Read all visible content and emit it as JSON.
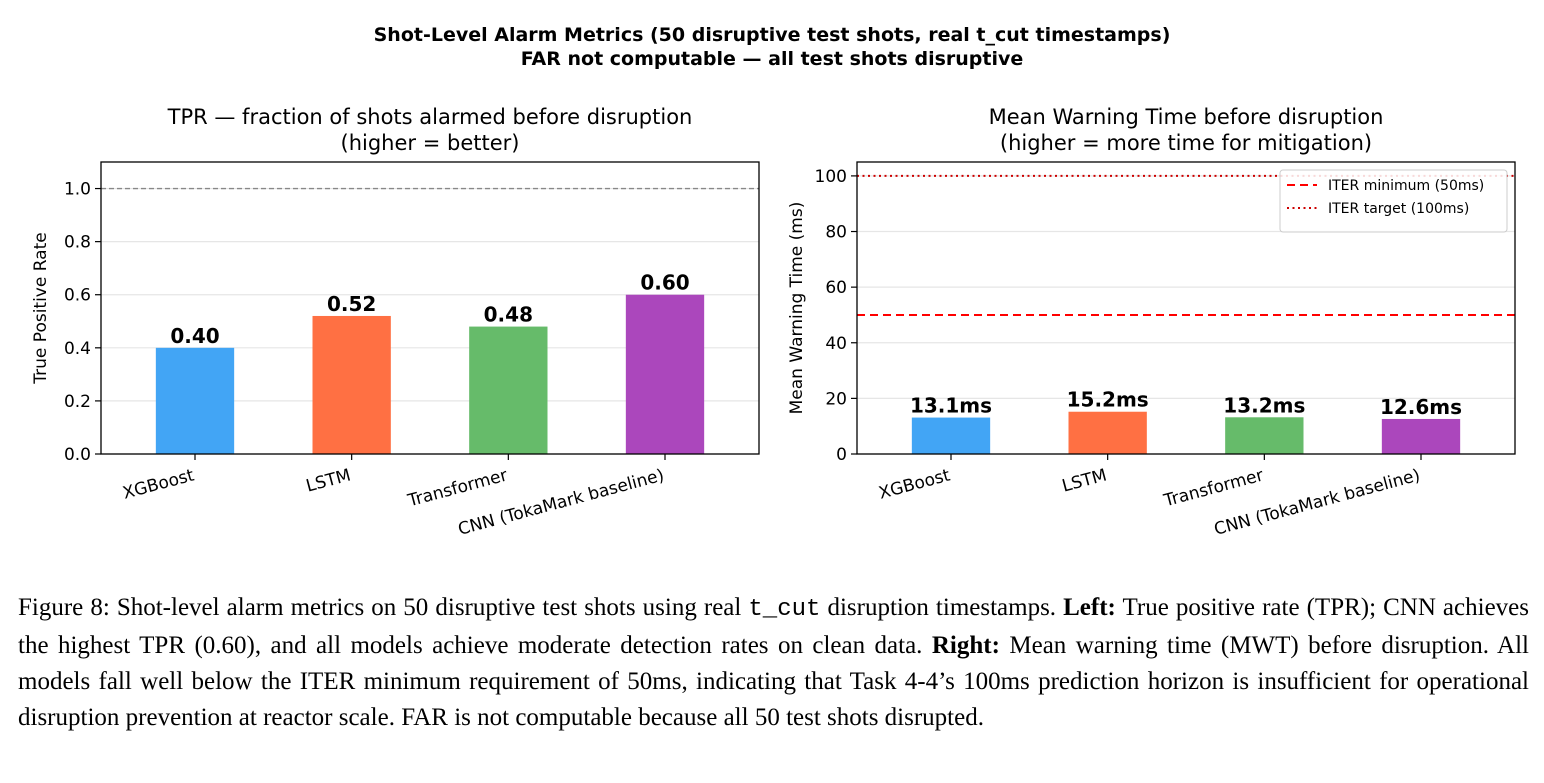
{
  "figure": {
    "suptitle_line1": "Shot-Level Alarm Metrics (50 disruptive test shots, real t_cut timestamps)",
    "suptitle_line2": "FAR not computable — all test shots disruptive"
  },
  "chart_data": [
    {
      "type": "bar",
      "title": "TPR — fraction of shots alarmed before disruption",
      "subtitle": "(higher = better)",
      "xlabel": "",
      "ylabel": "True Positive Rate",
      "categories": [
        "XGBoost",
        "LSTM",
        "Transformer",
        "CNN (TokaMark baseline)"
      ],
      "values": [
        0.4,
        0.52,
        0.48,
        0.6
      ],
      "value_labels": [
        "0.40",
        "0.52",
        "0.48",
        "0.60"
      ],
      "colors": [
        "#42a5f5",
        "#ff7043",
        "#66bb6a",
        "#ab47bc"
      ],
      "ylim": [
        0,
        1.1
      ],
      "yticks": [
        0.0,
        0.2,
        0.4,
        0.6,
        0.8,
        1.0
      ],
      "ytick_labels": [
        "0.0",
        "0.2",
        "0.4",
        "0.6",
        "0.8",
        "1.0"
      ],
      "reference_lines": [
        {
          "y": 1.0,
          "style": "dashed",
          "color": "#888888"
        }
      ],
      "grid": "y",
      "legend": null
    },
    {
      "type": "bar",
      "title": "Mean Warning Time before disruption",
      "subtitle": "(higher = more time for mitigation)",
      "xlabel": "",
      "ylabel": "Mean Warning Time (ms)",
      "categories": [
        "XGBoost",
        "LSTM",
        "Transformer",
        "CNN (TokaMark baseline)"
      ],
      "values": [
        13.1,
        15.2,
        13.2,
        12.6
      ],
      "value_labels": [
        "13.1ms",
        "15.2ms",
        "13.2ms",
        "12.6ms"
      ],
      "colors": [
        "#42a5f5",
        "#ff7043",
        "#66bb6a",
        "#ab47bc"
      ],
      "ylim": [
        0,
        105
      ],
      "yticks": [
        0,
        20,
        40,
        60,
        80,
        100
      ],
      "ytick_labels": [
        "0",
        "20",
        "40",
        "60",
        "80",
        "100"
      ],
      "reference_lines": [
        {
          "y": 50,
          "style": "dashed",
          "color": "#ff0000",
          "label": "ITER minimum (50ms)"
        },
        {
          "y": 100,
          "style": "dotted",
          "color": "#cc0000",
          "label": "ITER target (100ms)"
        }
      ],
      "grid": "y",
      "legend": "top-right"
    }
  ],
  "caption": {
    "p1": "Figure 8: Shot-level alarm metrics on 50 disruptive test shots using real ",
    "code": "t_cut",
    "p2": " disruption timestamps. ",
    "left_label": "Left:",
    "p3": " True positive rate (TPR); CNN achieves the highest TPR (0.60), and all models achieve moderate detection rates on clean data. ",
    "right_label": "Right:",
    "p4": " Mean warning time (MWT) before disruption. All models fall well below the ITER minimum requirement of 50ms, indicating that Task 4-4’s 100ms prediction horizon is insufficient for operational disruption prevention at reactor scale. FAR is not computable because all 50 test shots disrupted."
  }
}
